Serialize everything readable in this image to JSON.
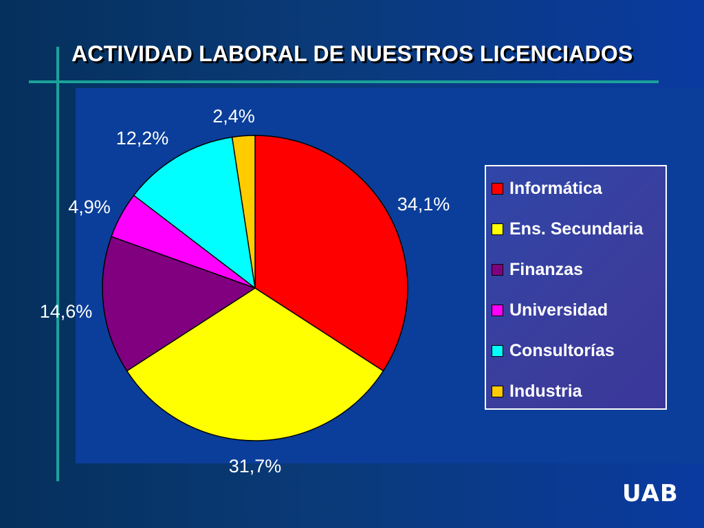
{
  "slide": {
    "title": "ACTIVIDAD  LABORAL  DE NUESTROS  LICENCIADOS",
    "logo_text": "UAB",
    "accent_color": "#1aa39a"
  },
  "chart_data": {
    "type": "pie",
    "title": "ACTIVIDAD  LABORAL  DE NUESTROS  LICENCIADOS",
    "legend_position": "right",
    "slices": [
      {
        "label": "Informática",
        "value": 34.1,
        "display": "34,1%",
        "color": "#ff0000"
      },
      {
        "label": "Ens. Secundaria",
        "value": 31.7,
        "display": "31,7%",
        "color": "#ffff00"
      },
      {
        "label": "Finanzas",
        "value": 14.6,
        "display": "14,6%",
        "color": "#800080"
      },
      {
        "label": "Universidad",
        "value": 4.9,
        "display": "4,9%",
        "color": "#ff00ff"
      },
      {
        "label": "Consultorías",
        "value": 12.2,
        "display": "12,2%",
        "color": "#00ffff"
      },
      {
        "label": "Industria",
        "value": 2.4,
        "display": "2,4%",
        "color": "#ffcc00"
      }
    ]
  }
}
